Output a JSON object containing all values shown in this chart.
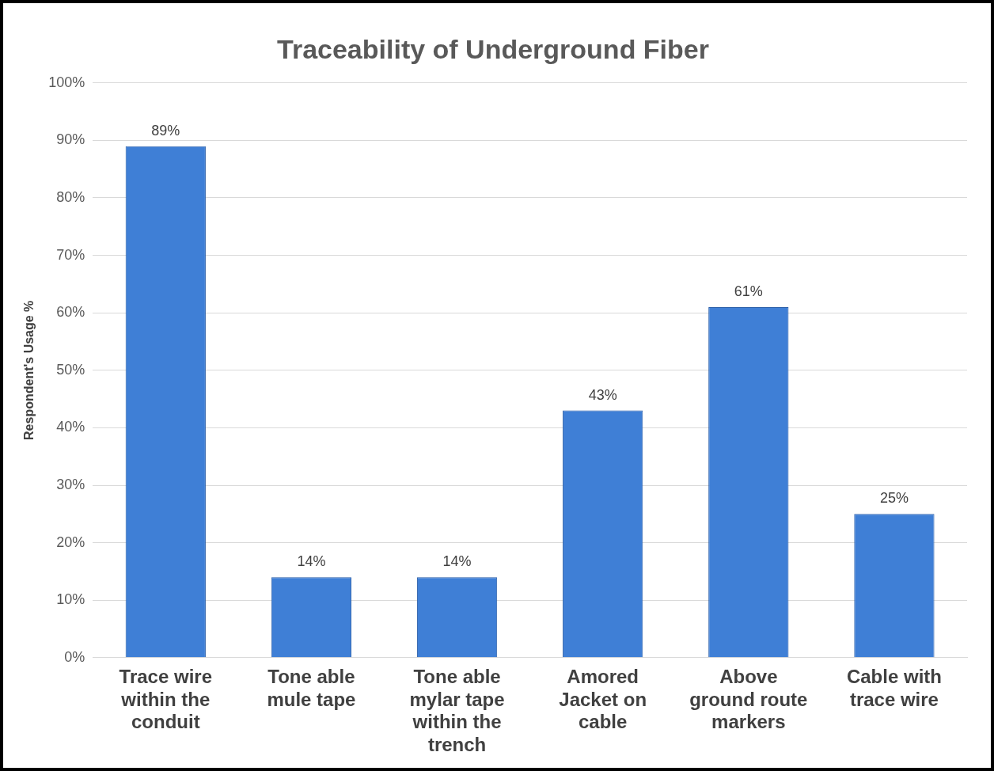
{
  "chart_data": {
    "type": "bar",
    "title": "Traceability of Underground Fiber",
    "ylabel": "Respondent's Usage %",
    "categories": [
      "Trace wire within the conduit",
      "Tone able mule tape",
      "Tone able mylar tape within the trench",
      "Amored Jacket on cable",
      "Above ground route markers",
      "Cable with trace wire"
    ],
    "values": [
      89,
      14,
      14,
      43,
      61,
      25
    ],
    "value_labels": [
      "89%",
      "14%",
      "14%",
      "43%",
      "61%",
      "25%"
    ],
    "color": "#3f7fd6",
    "ylim": [
      0,
      100
    ],
    "yticks": [
      {
        "value": 0,
        "label": "0%"
      },
      {
        "value": 10,
        "label": "10%"
      },
      {
        "value": 20,
        "label": "20%"
      },
      {
        "value": 30,
        "label": "30%"
      },
      {
        "value": 40,
        "label": "40%"
      },
      {
        "value": 50,
        "label": "50%"
      },
      {
        "value": 60,
        "label": "60%"
      },
      {
        "value": 70,
        "label": "70%"
      },
      {
        "value": 80,
        "label": "80%"
      },
      {
        "value": 90,
        "label": "90%"
      },
      {
        "value": 100,
        "label": "100%"
      }
    ],
    "grid": "y",
    "legend": false
  }
}
